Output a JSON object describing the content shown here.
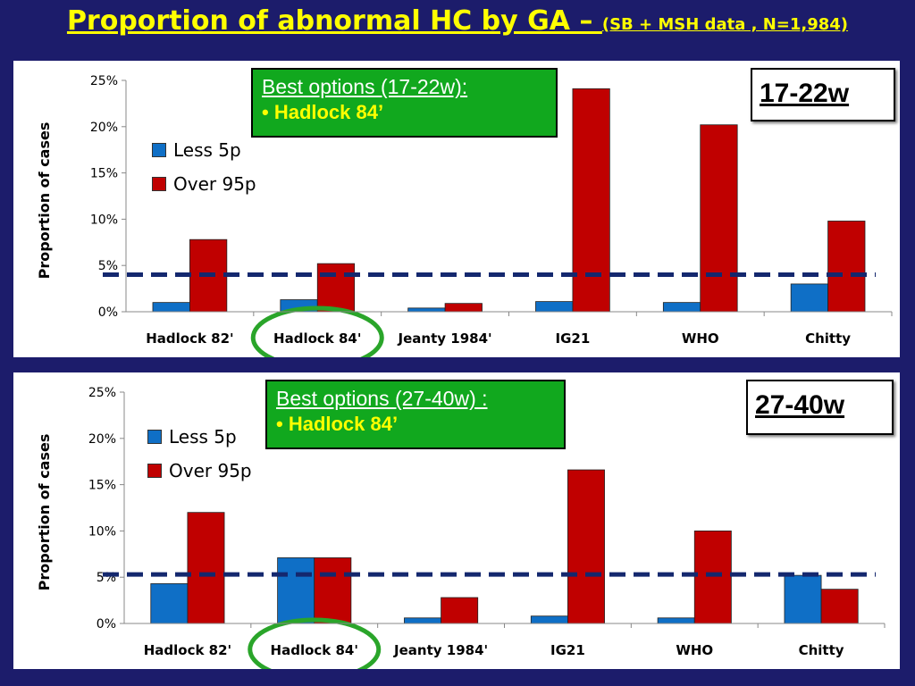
{
  "title": {
    "main": "Proportion of abnormal HC by GA – ",
    "sub": "(SB + MSH data , N=1,984)"
  },
  "colors": {
    "less": "#0f6fc6",
    "over": "#c00000",
    "threshold": "#14286e",
    "highlight": "#2aa52a"
  },
  "chart_data": [
    {
      "type": "bar",
      "categories": [
        "Hadlock 82'",
        "Hadlock 84'",
        "Jeanty 1984'",
        "IG21",
        "WHO",
        "Chitty"
      ],
      "series": [
        {
          "name": "Less 5p",
          "values": [
            1.0,
            1.3,
            0.4,
            1.1,
            1.0,
            3.0
          ]
        },
        {
          "name": "Over 95p",
          "values": [
            7.8,
            5.2,
            0.9,
            24.1,
            20.2,
            9.8
          ]
        }
      ],
      "ylabel": "Proportion of cases",
      "ylim": [
        0,
        25
      ],
      "yticks": [
        "0%",
        "5%",
        "10%",
        "15%",
        "20%",
        "25%"
      ],
      "threshold": 4.0,
      "highlight_category": "Hadlock 84'",
      "range_label": "17-22w",
      "callout": {
        "heading": "Best options (17-22w):",
        "bullet": "• Hadlock 84’"
      },
      "legend_position": "top-left"
    },
    {
      "type": "bar",
      "categories": [
        "Hadlock 82'",
        "Hadlock 84'",
        "Jeanty 1984'",
        "IG21",
        "WHO",
        "Chitty"
      ],
      "series": [
        {
          "name": "Less 5p",
          "values": [
            4.3,
            7.1,
            0.6,
            0.8,
            0.6,
            5.2
          ]
        },
        {
          "name": "Over 95p",
          "values": [
            12.0,
            7.1,
            2.8,
            16.6,
            10.0,
            3.7
          ]
        }
      ],
      "ylabel": "Proportion of cases",
      "ylim": [
        0,
        25
      ],
      "yticks": [
        "0%",
        "5%",
        "10%",
        "15%",
        "20%",
        "25%"
      ],
      "threshold": 5.3,
      "highlight_category": "Hadlock 84'",
      "range_label": "27-40w",
      "callout": {
        "heading": "Best options (27-40w) :",
        "bullet": "• Hadlock 84’"
      },
      "legend_position": "top-left"
    }
  ]
}
